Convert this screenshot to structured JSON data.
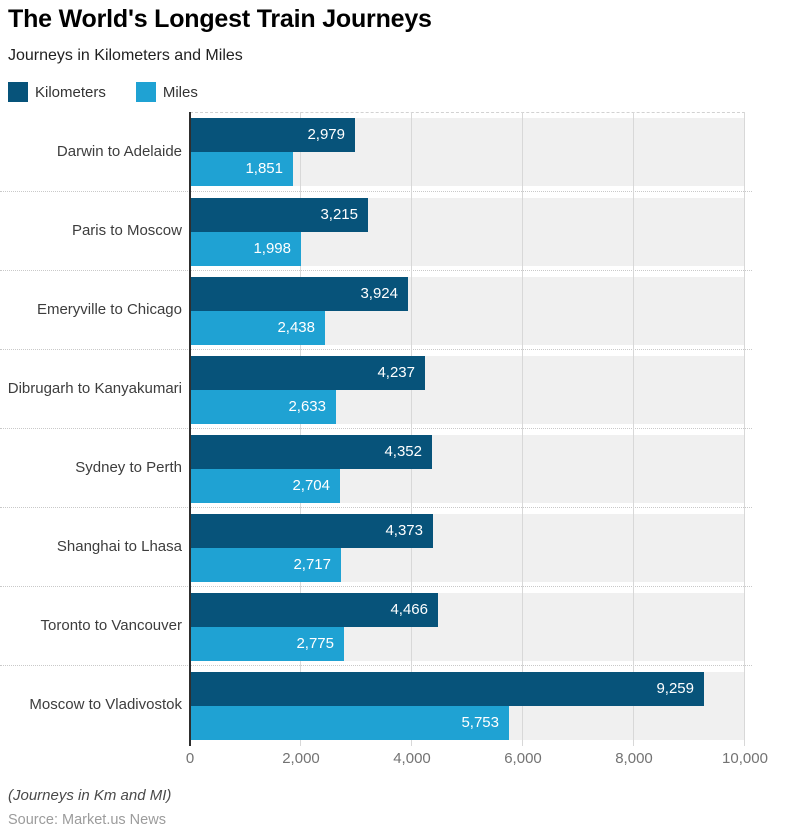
{
  "header": {
    "title": "The World's Longest Train Journeys",
    "subtitle": "Journeys in Kilometers and Miles"
  },
  "legend": [
    {
      "label": "Kilometers",
      "color": "#07537a"
    },
    {
      "label": "Miles",
      "color": "#1fa2d3"
    }
  ],
  "chart_data": {
    "type": "bar",
    "orientation": "horizontal",
    "title": "The World's Longest Train Journeys",
    "subtitle": "Journeys in Kilometers and Miles",
    "categories": [
      "Darwin to Adelaide",
      "Paris to Moscow",
      "Emeryville to Chicago",
      "Dibrugarh to Kanyakumari",
      "Sydney to Perth",
      "Shanghai to Lhasa",
      "Toronto to Vancouver",
      "Moscow to Vladivostok"
    ],
    "series": [
      {
        "name": "Kilometers",
        "color": "#07537a",
        "values": [
          2979,
          3215,
          3924,
          4237,
          4352,
          4373,
          4466,
          9259
        ],
        "labels": [
          "2,979",
          "3,215",
          "3,924",
          "4,237",
          "4,352",
          "4,373",
          "4,466",
          "9,259"
        ]
      },
      {
        "name": "Miles",
        "color": "#1fa2d3",
        "values": [
          1851,
          1998,
          2438,
          2633,
          2704,
          2717,
          2775,
          5753
        ],
        "labels": [
          "1,851",
          "1,998",
          "2,438",
          "2,633",
          "2,704",
          "2,717",
          "2,775",
          "5,753"
        ]
      }
    ],
    "xlim": [
      0,
      10000
    ],
    "x_ticks": [
      {
        "value": 0,
        "label": "0"
      },
      {
        "value": 2000,
        "label": "2,000"
      },
      {
        "value": 4000,
        "label": "4,000"
      },
      {
        "value": 6000,
        "label": "6,000"
      },
      {
        "value": 8000,
        "label": "8,000"
      },
      {
        "value": 10000,
        "label": "10,000"
      }
    ],
    "grid": true,
    "legend_position": "top-left",
    "plot_background": "#f0f0f0",
    "gridline_color": "#d8d8d8"
  },
  "footer": {
    "note": "(Journeys in Km and MI)",
    "source": "Source: Market.us News"
  }
}
